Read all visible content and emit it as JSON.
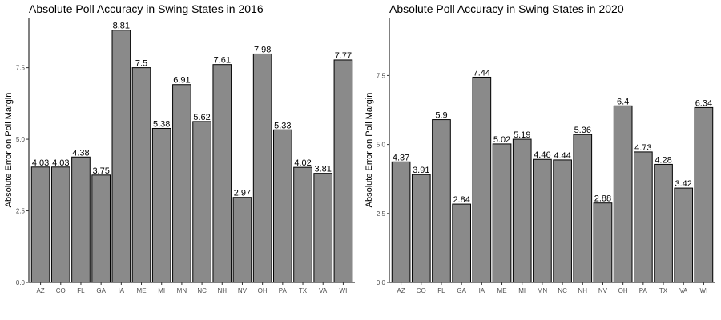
{
  "chart_data": [
    {
      "type": "bar",
      "title": "Absolute Poll Accuracy in Swing States in 2016",
      "xlabel": "",
      "ylabel": "Absolute Error on Poll Margin",
      "categories": [
        "AZ",
        "CO",
        "FL",
        "GA",
        "IA",
        "ME",
        "MI",
        "MN",
        "NC",
        "NH",
        "NV",
        "OH",
        "PA",
        "TX",
        "VA",
        "WI"
      ],
      "values": [
        4.03,
        4.03,
        4.38,
        3.75,
        8.81,
        7.5,
        5.38,
        6.91,
        5.62,
        7.61,
        2.97,
        7.98,
        5.33,
        4.02,
        3.81,
        7.77
      ],
      "data_labels": [
        "4.03",
        "4.03",
        "4.38",
        "3.75",
        "8.81",
        "7.5",
        "5.38",
        "6.91",
        "5.62",
        "7.61",
        "2.97",
        "7.98",
        "5.33",
        "4.02",
        "3.81",
        "7.77"
      ],
      "yticks": [
        0.0,
        2.5,
        5.0,
        7.5
      ],
      "ytick_labels": [
        "0.0",
        "2.5",
        "5.0",
        "7.5"
      ],
      "ylim": [
        0,
        9.25
      ],
      "grid": false,
      "bar_color": "#8a8a8a",
      "edge_color": "#000000"
    },
    {
      "type": "bar",
      "title": "Absolute Poll Accuracy in Swing States in 2020",
      "xlabel": "",
      "ylabel": "Absolute Error on Poll Margin",
      "categories": [
        "AZ",
        "CO",
        "FL",
        "GA",
        "IA",
        "ME",
        "MI",
        "MN",
        "NC",
        "NH",
        "NV",
        "OH",
        "PA",
        "TX",
        "VA",
        "WI"
      ],
      "values": [
        4.37,
        3.91,
        5.9,
        2.84,
        7.44,
        5.02,
        5.19,
        4.46,
        4.44,
        5.36,
        2.88,
        6.4,
        4.73,
        4.28,
        3.42,
        6.34
      ],
      "data_labels": [
        "4.37",
        "3.91",
        "5.9",
        "2.84",
        "7.44",
        "5.02",
        "5.19",
        "4.46",
        "4.44",
        "5.36",
        "2.88",
        "6.4",
        "4.73",
        "4.28",
        "3.42",
        "6.34"
      ],
      "yticks": [
        0.0,
        2.5,
        5.0,
        7.5
      ],
      "ytick_labels": [
        "0.0",
        "2.5",
        "5.0",
        "7.5"
      ],
      "ylim": [
        0,
        9.6
      ],
      "grid": false,
      "bar_color": "#8a8a8a",
      "edge_color": "#000000"
    }
  ]
}
